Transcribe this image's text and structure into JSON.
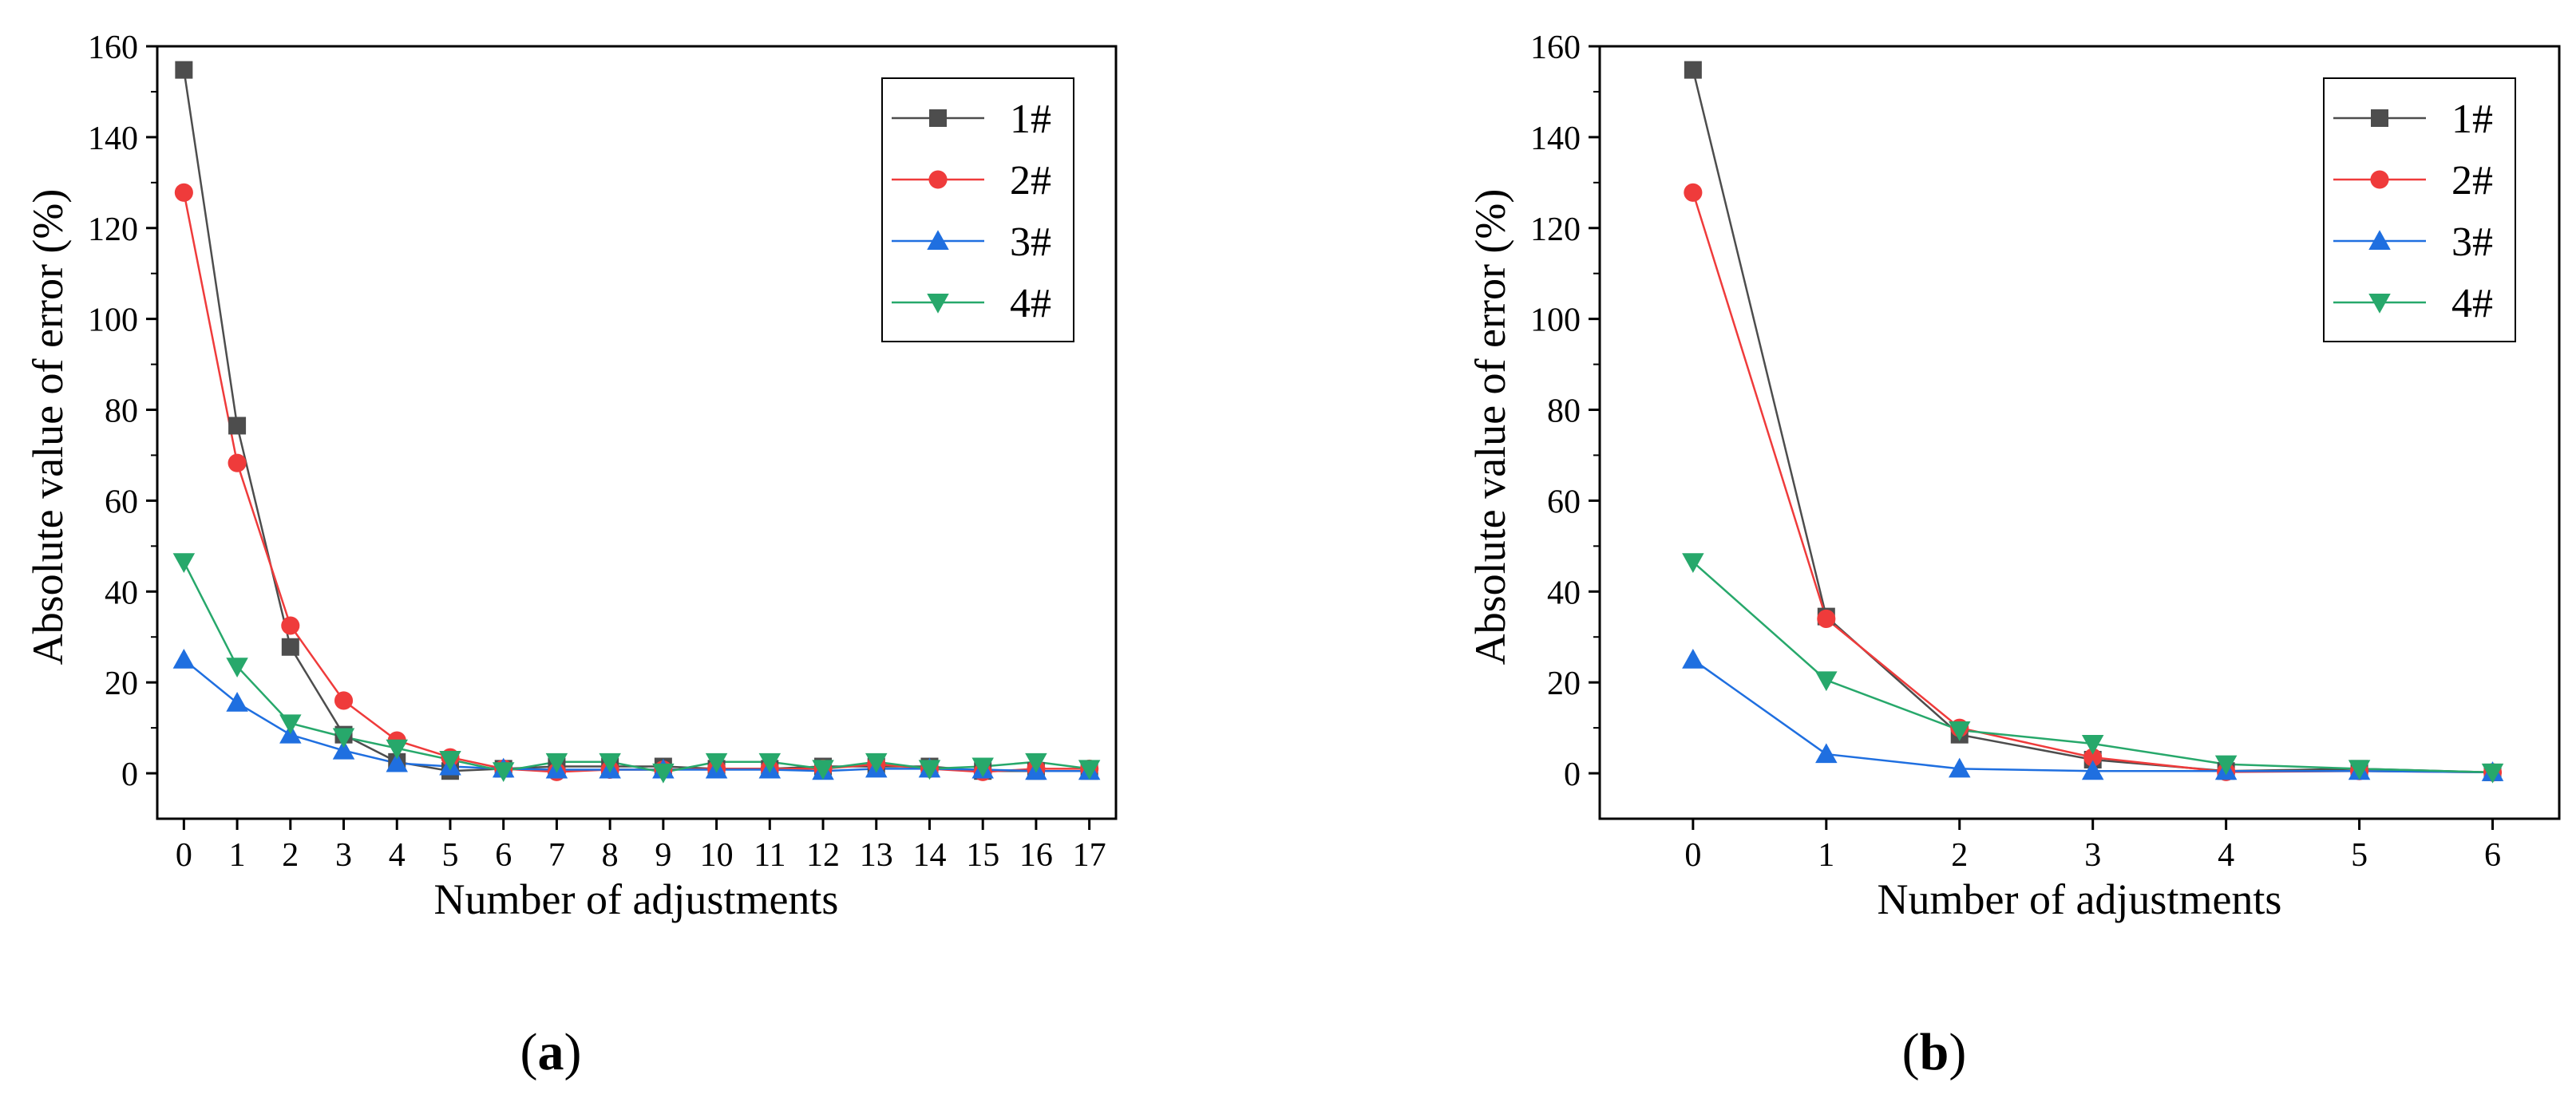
{
  "chart_data": [
    {
      "type": "line",
      "panel_label_open": "(",
      "panel_label": "a",
      "panel_label_close": ")",
      "title": "",
      "xlabel": "Number of adjustments",
      "ylabel": "Absolute value of error (%)",
      "xlim": [
        -0.5,
        17.5
      ],
      "ylim": [
        -10,
        160
      ],
      "x": [
        0,
        1,
        2,
        3,
        4,
        5,
        6,
        7,
        8,
        9,
        10,
        11,
        12,
        13,
        14,
        15,
        16,
        17
      ],
      "x_ticks": [
        "0",
        "1",
        "2",
        "3",
        "4",
        "5",
        "6",
        "7",
        "8",
        "9",
        "10",
        "11",
        "12",
        "13",
        "14",
        "15",
        "16",
        "17"
      ],
      "y_ticks": [
        "0",
        "20",
        "40",
        "60",
        "80",
        "100",
        "120",
        "140",
        "160"
      ],
      "legend_position": "top-right",
      "series": [
        {
          "name": "1#",
          "color": "#4d4d4d",
          "marker": "square",
          "values": [
            154.8,
            76.5,
            27.8,
            8.5,
            2.5,
            0.5,
            1.0,
            1.5,
            1.5,
            1.5,
            1.0,
            1.0,
            1.5,
            1.5,
            1.5,
            0.5,
            0.5,
            0.5
          ]
        },
        {
          "name": "2#",
          "color": "#ef3b3b",
          "marker": "circle",
          "values": [
            127.8,
            68.3,
            32.5,
            16.0,
            7.2,
            3.5,
            1.0,
            0.3,
            0.8,
            0.8,
            1.0,
            1.0,
            1.0,
            2.0,
            1.0,
            0.3,
            1.0,
            1.0
          ]
        },
        {
          "name": "3#",
          "color": "#1f6fe0",
          "marker": "triangle-up",
          "values": [
            25.0,
            15.5,
            8.5,
            5.0,
            2.2,
            1.5,
            1.0,
            0.8,
            0.8,
            0.8,
            0.8,
            0.8,
            0.5,
            1.0,
            1.0,
            0.8,
            0.5,
            0.5
          ]
        },
        {
          "name": "4#",
          "color": "#27a86b",
          "marker": "triangle-down",
          "values": [
            46.5,
            23.5,
            11.0,
            8.0,
            5.5,
            3.0,
            0.5,
            2.5,
            2.5,
            0.2,
            2.5,
            2.5,
            1.0,
            2.5,
            1.0,
            1.5,
            2.5,
            1.0
          ]
        }
      ]
    },
    {
      "type": "line",
      "panel_label_open": "(",
      "panel_label": "b",
      "panel_label_close": ")",
      "title": "",
      "xlabel": "Number of adjustments",
      "ylabel": "Absolute value of error (%)",
      "xlim": [
        -0.7,
        6.5
      ],
      "ylim": [
        -10,
        160
      ],
      "x": [
        0,
        1,
        2,
        3,
        4,
        5,
        6
      ],
      "x_ticks": [
        "0",
        "1",
        "2",
        "3",
        "4",
        "5",
        "6"
      ],
      "y_ticks": [
        "0",
        "20",
        "40",
        "60",
        "80",
        "100",
        "120",
        "140",
        "160"
      ],
      "legend_position": "top-right",
      "series": [
        {
          "name": "1#",
          "color": "#4d4d4d",
          "marker": "square",
          "values": [
            154.8,
            34.5,
            8.5,
            3.0,
            0.5,
            1.0,
            0.2
          ]
        },
        {
          "name": "2#",
          "color": "#ef3b3b",
          "marker": "circle",
          "values": [
            127.8,
            34.0,
            10.0,
            3.5,
            0.3,
            0.5,
            0.2
          ]
        },
        {
          "name": "3#",
          "color": "#1f6fe0",
          "marker": "triangle-up",
          "values": [
            25.0,
            4.2,
            1.0,
            0.5,
            0.5,
            0.5,
            0.2
          ]
        },
        {
          "name": "4#",
          "color": "#27a86b",
          "marker": "triangle-down",
          "values": [
            46.5,
            20.5,
            9.5,
            6.5,
            2.0,
            1.0,
            0.2
          ]
        }
      ]
    }
  ]
}
